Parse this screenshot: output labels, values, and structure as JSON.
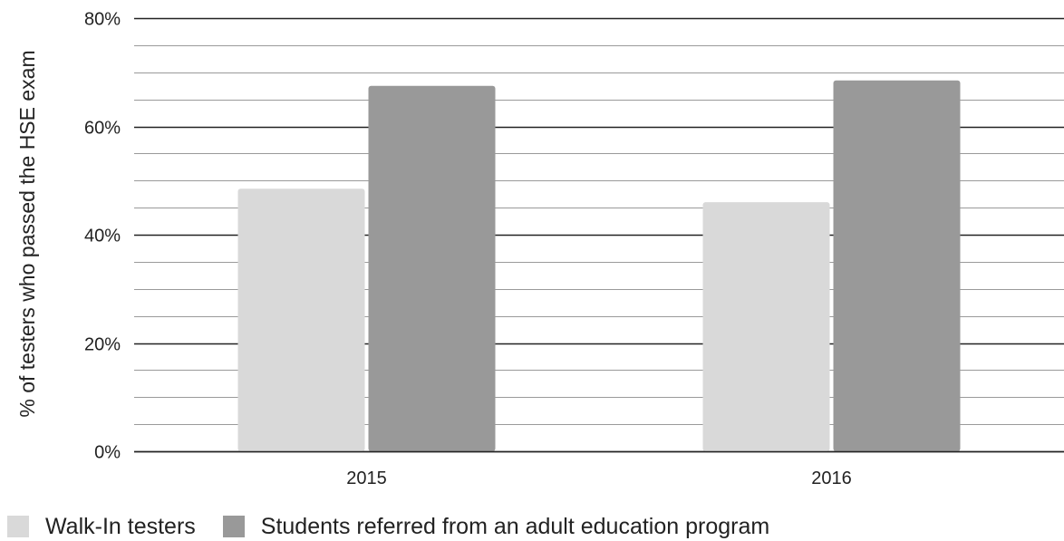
{
  "chart_data": {
    "type": "bar",
    "title": "",
    "xlabel": "",
    "ylabel": "% of testers who passed the HSE exam",
    "categories": [
      "2015",
      "2016"
    ],
    "series": [
      {
        "name": "Walk-In testers",
        "values": [
          48.5,
          46.0
        ],
        "color": "#d9d9d9"
      },
      {
        "name": "Students referred from an adult education program",
        "values": [
          67.5,
          68.5
        ],
        "color": "#999999"
      }
    ],
    "ylim": [
      0,
      80
    ],
    "yticks": [
      {
        "value": 0,
        "label": "0%"
      },
      {
        "value": 20,
        "label": "20%"
      },
      {
        "value": 40,
        "label": "40%"
      },
      {
        "value": 60,
        "label": "60%"
      },
      {
        "value": 80,
        "label": "80%"
      }
    ],
    "minor_grid_step": 5,
    "grid": true,
    "legend_position": "bottom-left"
  }
}
